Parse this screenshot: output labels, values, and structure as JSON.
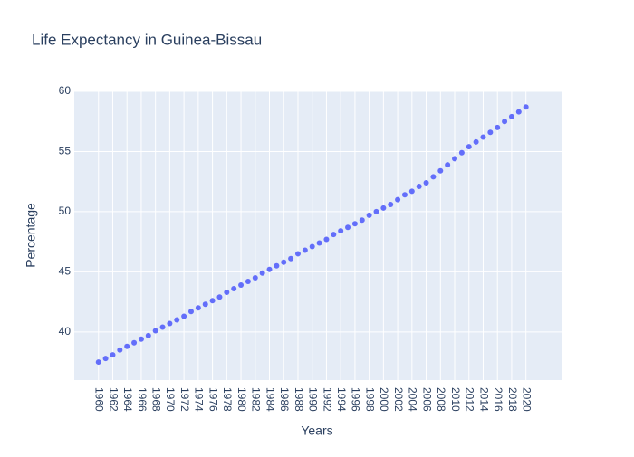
{
  "chart_data": {
    "type": "scatter",
    "title": "Life Expectancy in Guinea-Bissau",
    "x_label": "Years",
    "y_label": "Percentage",
    "color": "#636efa",
    "grid": true,
    "x": [
      1960,
      1961,
      1962,
      1963,
      1964,
      1965,
      1966,
      1967,
      1968,
      1969,
      1970,
      1971,
      1972,
      1973,
      1974,
      1975,
      1976,
      1977,
      1978,
      1979,
      1980,
      1981,
      1982,
      1983,
      1984,
      1985,
      1986,
      1987,
      1988,
      1989,
      1990,
      1991,
      1992,
      1993,
      1994,
      1995,
      1996,
      1997,
      1998,
      1999,
      2000,
      2001,
      2002,
      2003,
      2004,
      2005,
      2006,
      2007,
      2008,
      2009,
      2010,
      2011,
      2012,
      2013,
      2014,
      2015,
      2016,
      2017,
      2018,
      2019,
      2020
    ],
    "values": [
      37.5,
      37.8,
      38.1,
      38.5,
      38.8,
      39.1,
      39.4,
      39.7,
      40.1,
      40.4,
      40.7,
      41.0,
      41.3,
      41.7,
      42.0,
      42.3,
      42.6,
      42.9,
      43.3,
      43.6,
      43.9,
      44.2,
      44.5,
      44.9,
      45.2,
      45.5,
      45.8,
      46.1,
      46.5,
      46.8,
      47.1,
      47.4,
      47.7,
      48.1,
      48.4,
      48.7,
      49.0,
      49.3,
      49.7,
      50.0,
      50.3,
      50.6,
      51.0,
      51.4,
      51.7,
      52.1,
      52.4,
      52.9,
      53.4,
      53.9,
      54.4,
      54.9,
      55.4,
      55.8,
      56.2,
      56.6,
      57.0,
      57.5,
      57.9,
      58.3,
      58.7
    ],
    "xlim": [
      1956.6,
      2025
    ],
    "xticks": [
      1960,
      1962,
      1964,
      1966,
      1968,
      1970,
      1972,
      1974,
      1976,
      1978,
      1980,
      1982,
      1984,
      1986,
      1988,
      1990,
      1992,
      1994,
      1996,
      1998,
      2000,
      2002,
      2004,
      2006,
      2008,
      2010,
      2012,
      2014,
      2016,
      2018,
      2020
    ],
    "ylim": [
      36,
      60
    ],
    "yticks": [
      40,
      45,
      50,
      55,
      60
    ]
  }
}
